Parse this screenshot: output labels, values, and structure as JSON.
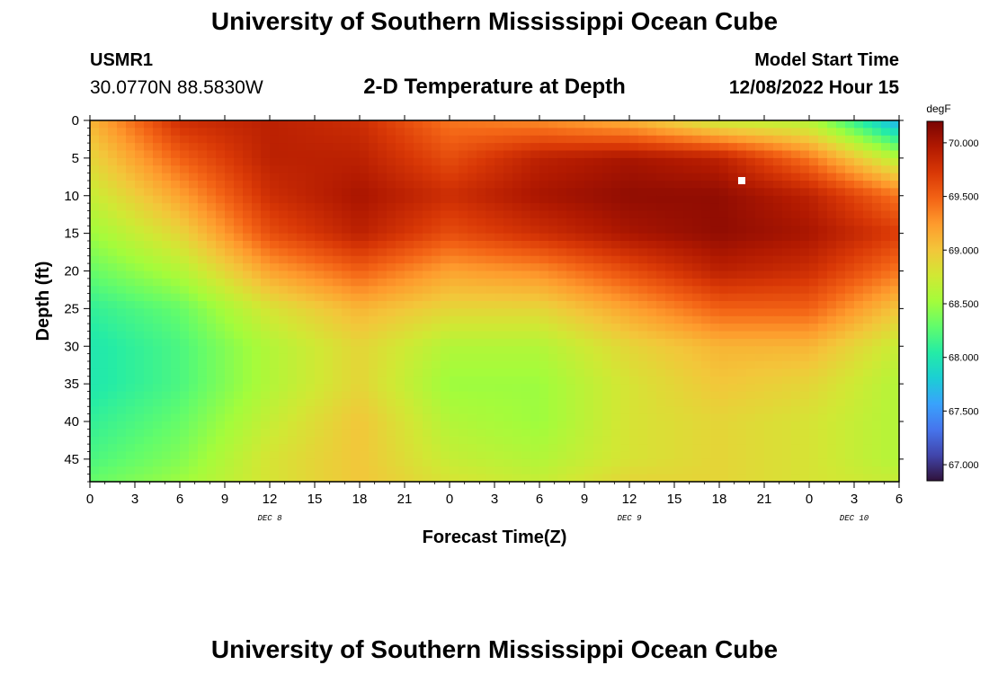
{
  "header": {
    "title": "University of Southern Mississippi Ocean Cube",
    "station_id": "USMR1",
    "station_coords": "30.0770N  88.5830W",
    "plot_title": "2-D Temperature at Depth",
    "start_label": "Model Start Time",
    "start_value": "12/08/2022 Hour 15"
  },
  "footer": {
    "title": "University of Southern Mississippi Ocean Cube"
  },
  "chart_data": {
    "type": "heatmap",
    "title": "2-D Temperature at Depth",
    "xlabel": "Forecast Time(Z)",
    "ylabel": "Depth (ft)",
    "x_ticks": [
      "0",
      "3",
      "6",
      "9",
      "12",
      "15",
      "18",
      "21",
      "0",
      "3",
      "6",
      "9",
      "12",
      "15",
      "18",
      "21",
      "0",
      "3",
      "6"
    ],
    "x_range_hours": [
      0,
      54
    ],
    "day_labels": [
      {
        "label": "DEC 8",
        "hour": 12
      },
      {
        "label": "DEC 9",
        "hour": 36
      },
      {
        "label": "DEC 10",
        "hour": 51
      }
    ],
    "y_ticks": [
      0,
      5,
      10,
      15,
      20,
      25,
      30,
      35,
      40,
      45
    ],
    "y_range_ft": [
      0,
      48
    ],
    "colorbar": {
      "units": "degF",
      "min": 66.85,
      "max": 70.2,
      "tick_values": [
        67.0,
        67.5,
        68.0,
        68.5,
        69.0,
        69.5,
        70.0
      ],
      "tick_labels": [
        "67.000",
        "67.500",
        "68.000",
        "68.500",
        "69.000",
        "69.500",
        "70.000"
      ]
    },
    "colormap": [
      "#30123b",
      "#4145ab",
      "#4675ed",
      "#39a2fc",
      "#1bcfd4",
      "#24eca6",
      "#61fc6c",
      "#a4fc3b",
      "#d1e834",
      "#f3c63a",
      "#fe9b2d",
      "#f36315",
      "#d93806",
      "#b11901",
      "#7a0403"
    ],
    "grid_note": "temperature (degF) sampled every 6 forecast hours (0..54) at depths 0,5,...,45,48 ft",
    "temperature_grid": [
      [
        69.1,
        69.8,
        69.9,
        69.8,
        69.4,
        69.3,
        69.1,
        68.7,
        68.6,
        67.6
      ],
      [
        68.9,
        69.5,
        69.9,
        69.9,
        69.6,
        69.9,
        70.0,
        69.9,
        69.4,
        68.6
      ],
      [
        68.7,
        69.2,
        69.8,
        70.0,
        69.8,
        70.0,
        70.1,
        70.1,
        69.9,
        69.4
      ],
      [
        68.5,
        68.9,
        69.6,
        69.9,
        69.6,
        69.8,
        70.0,
        70.1,
        70.0,
        69.7
      ],
      [
        68.3,
        68.6,
        69.2,
        69.5,
        69.2,
        69.3,
        69.6,
        69.9,
        69.8,
        69.4
      ],
      [
        68.1,
        68.3,
        68.8,
        69.1,
        68.9,
        68.9,
        69.2,
        69.5,
        69.5,
        69.0
      ],
      [
        68.0,
        68.2,
        68.6,
        68.9,
        68.6,
        68.6,
        68.9,
        69.1,
        69.1,
        68.7
      ],
      [
        68.0,
        68.2,
        68.6,
        68.9,
        68.5,
        68.5,
        68.8,
        69.0,
        68.9,
        68.6
      ],
      [
        68.1,
        68.3,
        68.7,
        69.0,
        68.6,
        68.5,
        68.8,
        68.9,
        68.8,
        68.6
      ],
      [
        68.2,
        68.4,
        68.8,
        69.0,
        68.7,
        68.6,
        68.8,
        68.9,
        68.8,
        68.6
      ],
      [
        68.3,
        68.5,
        68.8,
        69.0,
        68.8,
        68.7,
        68.9,
        68.9,
        68.8,
        68.7
      ]
    ],
    "grid_hours": [
      0,
      6,
      12,
      18,
      24,
      30,
      36,
      42,
      48,
      54
    ],
    "grid_depths_ft": [
      0,
      5,
      10,
      15,
      20,
      25,
      30,
      35,
      40,
      45,
      48
    ],
    "marker": {
      "hour": 43.5,
      "depth_ft": 8
    }
  }
}
